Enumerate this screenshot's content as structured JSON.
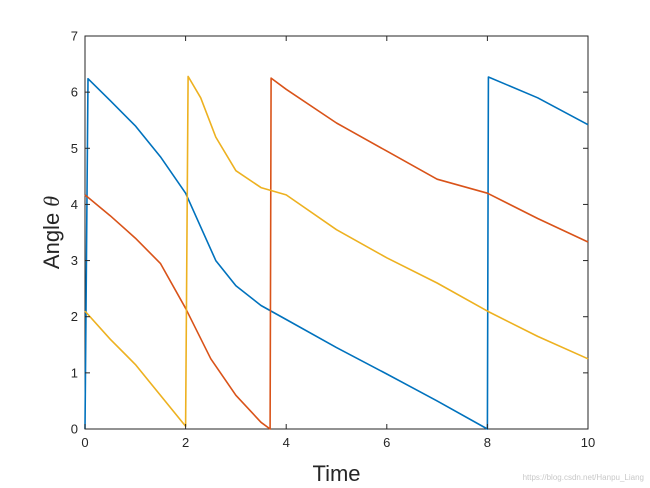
{
  "chart_data": {
    "type": "line",
    "xlabel": "Time",
    "ylabel_text": "Angle ",
    "ylabel_symbol": "θ",
    "xlim": [
      0,
      10
    ],
    "ylim": [
      0,
      7
    ],
    "xticks": [
      0,
      2,
      4,
      6,
      8,
      10
    ],
    "yticks": [
      0,
      1,
      2,
      3,
      4,
      5,
      6,
      7
    ],
    "grid": false,
    "legend": "none",
    "series": [
      {
        "color": "#0072BD",
        "points": [
          [
            0,
            0
          ],
          [
            0.06,
            6.24
          ],
          [
            0.5,
            5.85
          ],
          [
            1,
            5.4
          ],
          [
            1.5,
            4.85
          ],
          [
            2,
            4.2
          ],
          [
            2.3,
            3.6
          ],
          [
            2.6,
            3.0
          ],
          [
            3,
            2.55
          ],
          [
            3.5,
            2.2
          ],
          [
            4,
            1.95
          ],
          [
            5,
            1.45
          ],
          [
            6,
            0.98
          ],
          [
            7,
            0.5
          ],
          [
            8,
            0
          ],
          [
            8.02,
            6.27
          ],
          [
            9,
            5.9
          ],
          [
            10,
            5.42
          ]
        ]
      },
      {
        "color": "#D95319",
        "points": [
          [
            0,
            4.17
          ],
          [
            0.5,
            3.8
          ],
          [
            1,
            3.4
          ],
          [
            1.5,
            2.95
          ],
          [
            2,
            2.15
          ],
          [
            2.5,
            1.25
          ],
          [
            3,
            0.6
          ],
          [
            3.5,
            0.12
          ],
          [
            3.68,
            0
          ],
          [
            3.7,
            6.25
          ],
          [
            4,
            6.05
          ],
          [
            5,
            5.45
          ],
          [
            6,
            4.95
          ],
          [
            7,
            4.45
          ],
          [
            8,
            4.2
          ],
          [
            9,
            3.75
          ],
          [
            10,
            3.33
          ]
        ]
      },
      {
        "color": "#EDB120",
        "points": [
          [
            0,
            2.1
          ],
          [
            0.5,
            1.6
          ],
          [
            1,
            1.15
          ],
          [
            1.5,
            0.6
          ],
          [
            2,
            0.05
          ],
          [
            2.05,
            6.28
          ],
          [
            2.3,
            5.9
          ],
          [
            2.6,
            5.2
          ],
          [
            3,
            4.6
          ],
          [
            3.5,
            4.3
          ],
          [
            4,
            4.17
          ],
          [
            5,
            3.55
          ],
          [
            6,
            3.05
          ],
          [
            7,
            2.6
          ],
          [
            8,
            2.1
          ],
          [
            9,
            1.65
          ],
          [
            10,
            1.25
          ]
        ]
      }
    ]
  },
  "watermark": "https://blog.csdn.net/Hanpu_Liang"
}
